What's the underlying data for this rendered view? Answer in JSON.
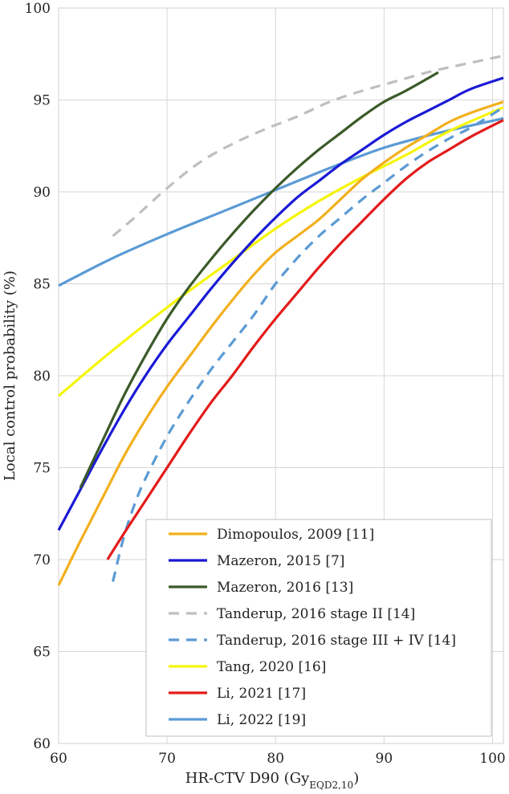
{
  "chart_data": {
    "type": "line",
    "title": "",
    "xlabel": "HR-CTV D90 (Gy",
    "xlabel_sub": "EQD2,10",
    "xlabel_end": ")",
    "ylabel": "Local control probability (%)",
    "xlim": [
      60,
      101
    ],
    "ylim": [
      60,
      100
    ],
    "xticks": [
      60,
      70,
      80,
      90,
      100
    ],
    "yticks": [
      60,
      65,
      70,
      75,
      80,
      85,
      90,
      95,
      100
    ],
    "grid": true,
    "legend_position": "bottom-right",
    "series": [
      {
        "name": "Dimopoulos, 2009 [11]",
        "color": "#f2b01e",
        "dash": "solid",
        "x": [
          60,
          62,
          64,
          66,
          68,
          70,
          72,
          74,
          76,
          78,
          80,
          82,
          84,
          86,
          88,
          90,
          92,
          94,
          96,
          98,
          101
        ],
        "y": [
          68.6,
          71.0,
          73.3,
          75.6,
          77.6,
          79.4,
          81.0,
          82.6,
          84.1,
          85.5,
          86.7,
          87.6,
          88.5,
          89.6,
          90.7,
          91.6,
          92.4,
          93.1,
          93.8,
          94.3,
          94.9
        ]
      },
      {
        "name": "Mazeron, 2015 [7]",
        "color": "#1a1ad6",
        "dash": "solid",
        "x": [
          60,
          62,
          64,
          66,
          68,
          70,
          72,
          74,
          76,
          78,
          80,
          82,
          84,
          86,
          88,
          90,
          92,
          94,
          96,
          98,
          101
        ],
        "y": [
          71.6,
          73.8,
          76.0,
          78.1,
          80.0,
          81.7,
          83.2,
          84.7,
          86.1,
          87.4,
          88.6,
          89.7,
          90.6,
          91.5,
          92.3,
          93.1,
          93.8,
          94.4,
          95.0,
          95.6,
          96.2
        ]
      },
      {
        "name": "Mazeron, 2016 [13]",
        "color": "#3b5a2a",
        "dash": "solid",
        "x": [
          62,
          64,
          66,
          68,
          70,
          72,
          74,
          76,
          78,
          80,
          82,
          84,
          86,
          88,
          90,
          92,
          95
        ],
        "y": [
          73.9,
          76.4,
          78.9,
          81.1,
          83.1,
          84.8,
          86.3,
          87.7,
          89.0,
          90.2,
          91.3,
          92.3,
          93.2,
          94.1,
          94.9,
          95.5,
          96.5
        ]
      },
      {
        "name": "Tanderup, 2016 stage II [14]",
        "color": "#bfbfbf",
        "dash": "dashed",
        "x": [
          65,
          67,
          70,
          73,
          76,
          79,
          82,
          85,
          88,
          91,
          94,
          97,
          101
        ],
        "y": [
          87.6,
          88.6,
          90.2,
          91.6,
          92.6,
          93.4,
          94.1,
          94.9,
          95.5,
          96.0,
          96.5,
          96.9,
          97.4
        ]
      },
      {
        "name": "Tanderup, 2016 stage III + IV [14]",
        "color": "#5b9bd5",
        "dash": "dashed",
        "x": [
          65,
          66,
          67,
          68,
          70,
          72,
          74,
          76,
          78,
          80,
          82,
          84,
          86,
          88,
          90,
          92,
          94,
          96,
          98,
          101
        ],
        "y": [
          68.8,
          71.2,
          73.0,
          74.4,
          76.7,
          78.6,
          80.3,
          81.8,
          83.3,
          85.0,
          86.4,
          87.6,
          88.6,
          89.6,
          90.5,
          91.4,
          92.2,
          92.9,
          93.5,
          94.6
        ]
      },
      {
        "name": "Tang, 2020 [16]",
        "color": "#f5f50a",
        "dash": "solid",
        "x": [
          60,
          64,
          68,
          72,
          76,
          80,
          84,
          88,
          92,
          96,
          101
        ],
        "y": [
          78.9,
          80.9,
          82.8,
          84.6,
          86.3,
          88.0,
          89.5,
          90.8,
          92.0,
          93.3,
          94.6
        ]
      },
      {
        "name": "Li, 2021 [17]",
        "color": "#e31b1b",
        "dash": "solid",
        "x": [
          64.5,
          66,
          68,
          70,
          72,
          74,
          76,
          78,
          80,
          82,
          84,
          86,
          88,
          90,
          92,
          94,
          96,
          98,
          101
        ],
        "y": [
          70.0,
          71.4,
          73.2,
          75.0,
          76.8,
          78.5,
          80.0,
          81.6,
          83.1,
          84.5,
          85.9,
          87.2,
          88.4,
          89.6,
          90.7,
          91.6,
          92.3,
          93.0,
          93.9
        ]
      },
      {
        "name": "Li, 2022 [19]",
        "color": "#5b9bd5",
        "dash": "solid",
        "x": [
          60,
          65,
          70,
          75,
          80,
          85,
          90,
          95,
          101
        ],
        "y": [
          84.9,
          86.4,
          87.7,
          88.9,
          90.1,
          91.3,
          92.4,
          93.2,
          94.0
        ]
      }
    ]
  }
}
